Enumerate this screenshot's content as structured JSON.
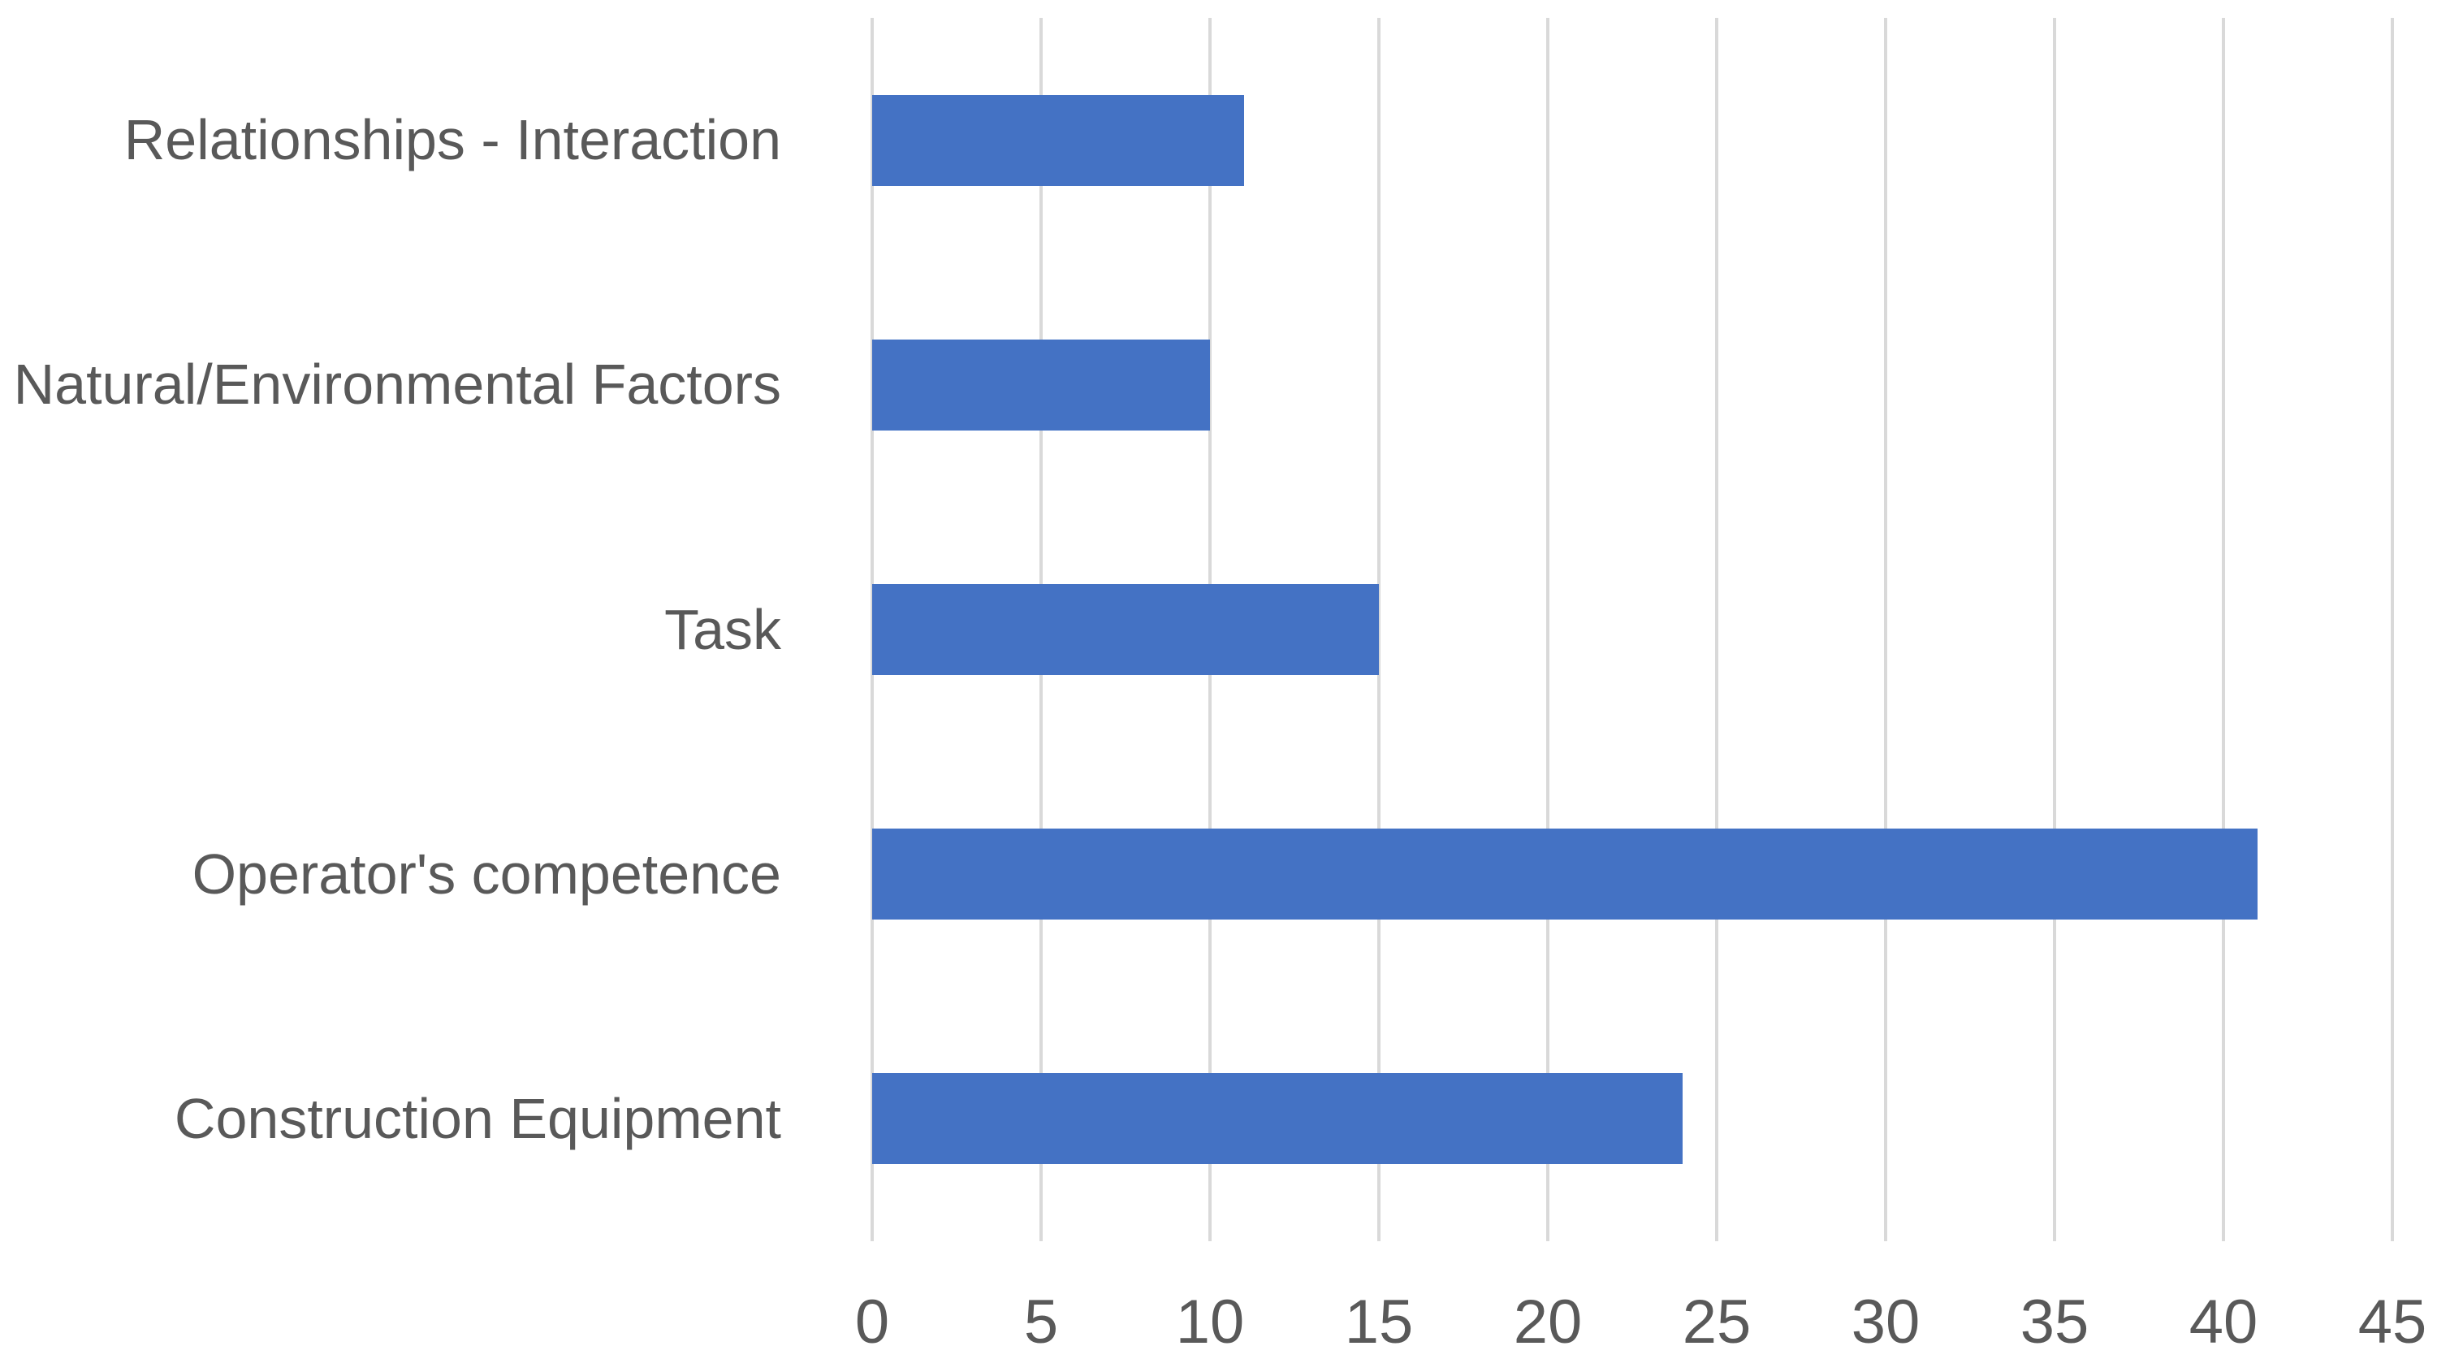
{
  "chart_data": {
    "type": "bar",
    "orientation": "horizontal",
    "title": "",
    "xlabel": "",
    "ylabel": "",
    "categories": [
      "Relationships - Interaction",
      "Natural/Environmental Factors",
      "Task",
      "Operator's competence",
      "Construction Equipment"
    ],
    "values": [
      11,
      10,
      15,
      41,
      24
    ],
    "xlim": [
      0,
      45
    ],
    "x_ticks": [
      0,
      5,
      10,
      15,
      20,
      25,
      30,
      35,
      40,
      45
    ],
    "grid": true,
    "legend": false,
    "bar_color": "#4472C4",
    "gridline_color": "#D9D9D9",
    "text_color": "#595959",
    "background_color": "#FFFFFF"
  }
}
